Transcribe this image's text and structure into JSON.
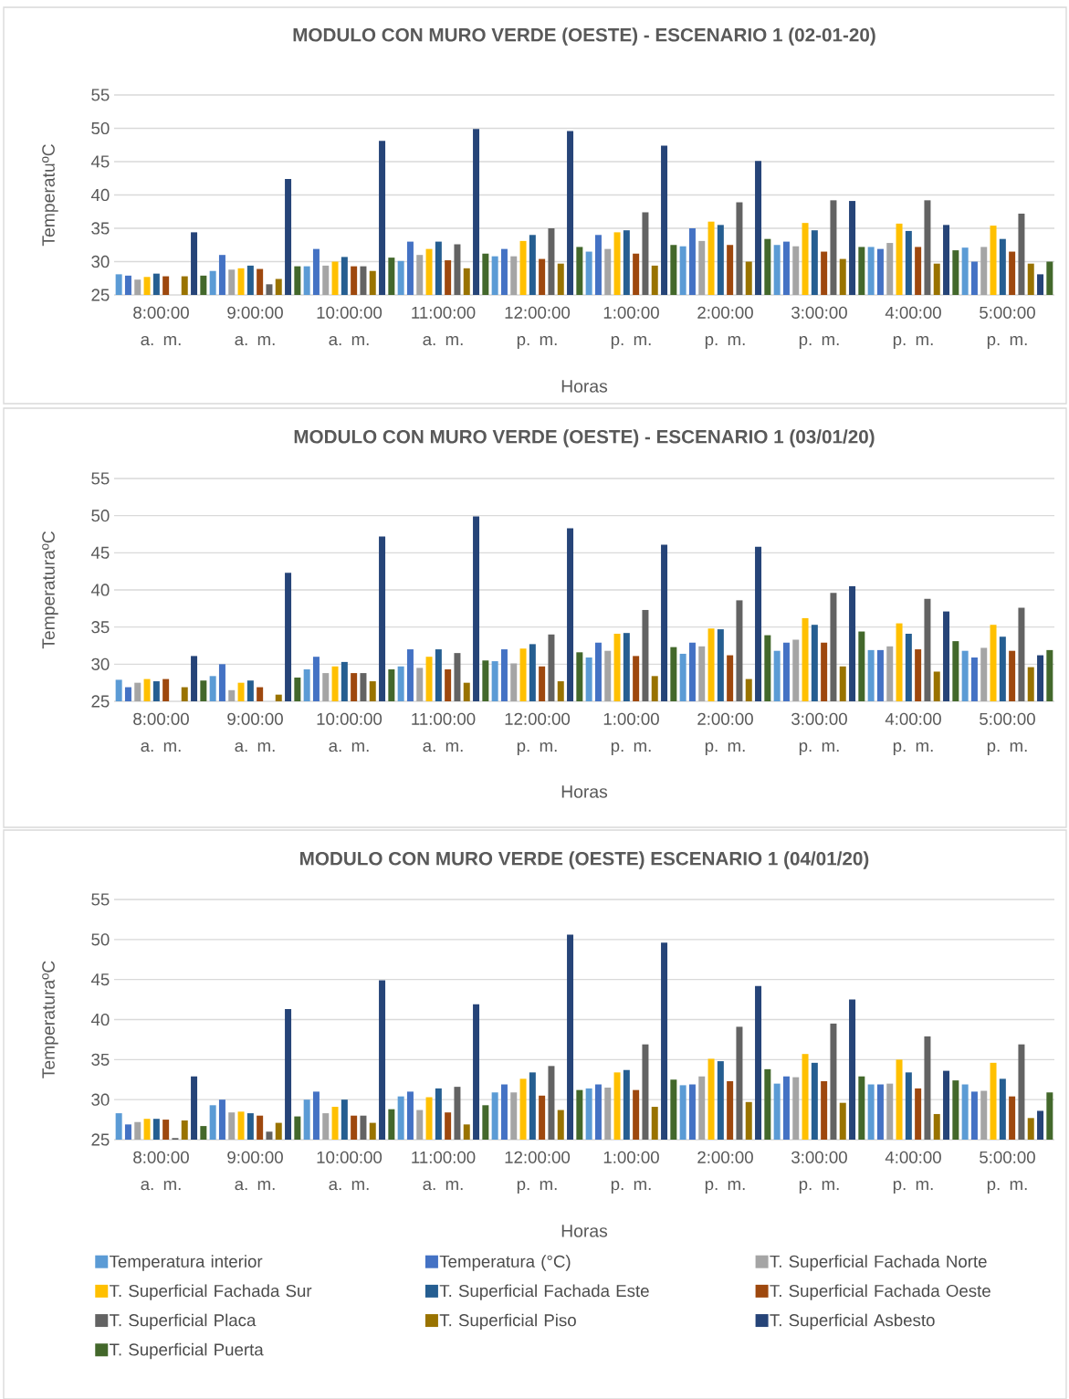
{
  "chart_data": [
    {
      "type": "bar",
      "title": "MODULO CON MURO VERDE (OESTE) - ESCENARIO 1 (02-01-20)",
      "xlabel": "Horas",
      "ylabel": "TemperatuºC",
      "categories": [
        "8:00:00 a. m.",
        "9:00:00 a. m.",
        "10:00:00 a. m.",
        "11:00:00 a. m.",
        "12:00:00 p. m.",
        "1:00:00 p. m.",
        "2:00:00 p. m.",
        "3:00:00 p. m.",
        "4:00:00 p. m.",
        "5:00:00 p. m."
      ],
      "ylim": [
        25,
        55
      ],
      "yticks": [
        25,
        30,
        35,
        40,
        45,
        50,
        55
      ],
      "grid": "y",
      "series": [
        {
          "color": "#5b9bd5",
          "values": [
            28.1,
            28.6,
            29.3,
            30.1,
            30.8,
            31.5,
            32.3,
            32.5,
            32.2,
            32.1
          ]
        },
        {
          "color": "#4472c4",
          "values": [
            27.9,
            31.0,
            31.9,
            33.0,
            31.9,
            34.0,
            35.0,
            33.0,
            31.9,
            30.0
          ]
        },
        {
          "color": "#a5a5a5",
          "values": [
            27.3,
            28.8,
            29.4,
            31.0,
            30.8,
            31.9,
            33.1,
            32.3,
            32.8,
            32.2
          ]
        },
        {
          "color": "#ffc000",
          "values": [
            27.7,
            29.0,
            30.0,
            31.9,
            33.1,
            34.4,
            36.0,
            35.8,
            35.7,
            35.4
          ]
        },
        {
          "color": "#255e91",
          "values": [
            28.2,
            29.4,
            30.7,
            33.0,
            34.0,
            34.7,
            35.5,
            34.7,
            34.6,
            33.4
          ]
        },
        {
          "color": "#9e480e",
          "values": [
            27.8,
            28.9,
            29.3,
            30.2,
            30.4,
            31.2,
            32.5,
            31.5,
            32.2,
            31.5
          ]
        },
        {
          "color": "#636363",
          "values": [
            null,
            26.6,
            29.3,
            32.6,
            35.0,
            37.4,
            38.9,
            39.2,
            39.2,
            37.2
          ]
        },
        {
          "color": "#997300",
          "values": [
            27.8,
            27.4,
            28.6,
            29.0,
            29.7,
            29.4,
            30.0,
            30.4,
            29.7,
            29.7
          ]
        },
        {
          "color": "#264478",
          "values": [
            34.4,
            42.4,
            48.1,
            49.9,
            49.6,
            47.4,
            45.1,
            39.1,
            35.5,
            28.1
          ]
        },
        {
          "color": "#43682b",
          "values": [
            27.9,
            29.3,
            30.6,
            31.2,
            32.2,
            32.5,
            33.4,
            32.2,
            31.7,
            30.0
          ]
        }
      ]
    },
    {
      "type": "bar",
      "title": "MODULO CON MURO VERDE (OESTE) - ESCENARIO 1 (03/01/20)",
      "xlabel": "Horas",
      "ylabel": "TemperaturaºC",
      "categories": [
        "8:00:00 a. m.",
        "9:00:00 a. m.",
        "10:00:00 a. m.",
        "11:00:00 a. m.",
        "12:00:00 p. m.",
        "1:00:00 p. m.",
        "2:00:00 p. m.",
        "3:00:00 p. m.",
        "4:00:00 p. m.",
        "5:00:00 p. m."
      ],
      "ylim": [
        25,
        55
      ],
      "yticks": [
        25,
        30,
        35,
        40,
        45,
        50,
        55
      ],
      "grid": "y",
      "series": [
        {
          "color": "#5b9bd5",
          "values": [
            27.9,
            28.4,
            29.3,
            29.7,
            30.4,
            30.9,
            31.4,
            31.8,
            31.9,
            31.8
          ]
        },
        {
          "color": "#4472c4",
          "values": [
            26.9,
            30.0,
            31.0,
            32.0,
            32.0,
            32.9,
            32.9,
            32.9,
            31.9,
            30.9
          ]
        },
        {
          "color": "#a5a5a5",
          "values": [
            27.5,
            26.5,
            28.8,
            29.5,
            30.1,
            31.8,
            32.4,
            33.3,
            32.4,
            32.2
          ]
        },
        {
          "color": "#ffc000",
          "values": [
            28.0,
            27.5,
            29.7,
            31.0,
            32.1,
            34.1,
            34.8,
            36.2,
            35.5,
            35.3
          ]
        },
        {
          "color": "#255e91",
          "values": [
            27.7,
            27.8,
            30.3,
            32.0,
            32.7,
            34.2,
            34.7,
            35.3,
            34.1,
            33.7
          ]
        },
        {
          "color": "#9e480e",
          "values": [
            28.0,
            26.9,
            28.8,
            29.3,
            29.7,
            31.1,
            31.2,
            32.9,
            32.0,
            31.8
          ]
        },
        {
          "color": "#636363",
          "values": [
            null,
            null,
            28.8,
            31.5,
            34.0,
            37.3,
            38.6,
            39.6,
            38.8,
            37.6
          ]
        },
        {
          "color": "#997300",
          "values": [
            26.9,
            25.9,
            27.7,
            27.5,
            27.7,
            28.4,
            28.0,
            29.7,
            29.0,
            29.6
          ]
        },
        {
          "color": "#264478",
          "values": [
            31.1,
            42.3,
            47.2,
            49.9,
            48.3,
            46.1,
            45.8,
            40.5,
            37.1,
            31.2
          ]
        },
        {
          "color": "#43682b",
          "values": [
            27.8,
            28.2,
            29.3,
            30.5,
            31.6,
            32.3,
            33.9,
            34.4,
            33.1,
            31.9
          ]
        }
      ]
    },
    {
      "type": "bar",
      "title": "MODULO CON MURO VERDE (OESTE) ESCENARIO 1 (04/01/20)",
      "xlabel": "Horas",
      "ylabel": "TemperaturaºC",
      "categories": [
        "8:00:00 a. m.",
        "9:00:00 a. m.",
        "10:00:00 a. m.",
        "11:00:00 a. m.",
        "12:00:00 p. m.",
        "1:00:00 p. m.",
        "2:00:00 p. m.",
        "3:00:00 p. m.",
        "4:00:00 p. m.",
        "5:00:00 p. m."
      ],
      "ylim": [
        25,
        55
      ],
      "yticks": [
        25,
        30,
        35,
        40,
        45,
        50,
        55
      ],
      "grid": "y",
      "legend": "bottom",
      "series": [
        {
          "name": "Temperatura interior",
          "color": "#5b9bd5",
          "values": [
            28.3,
            29.3,
            30.0,
            30.4,
            30.9,
            31.4,
            31.8,
            32.0,
            31.9,
            31.9
          ]
        },
        {
          "name": "Temperatura (°C)",
          "color": "#4472c4",
          "values": [
            26.9,
            30.0,
            31.0,
            31.0,
            31.9,
            31.9,
            31.9,
            32.9,
            31.9,
            31.0
          ]
        },
        {
          "name": "T. Superficial Fachada Norte",
          "color": "#a5a5a5",
          "values": [
            27.2,
            28.4,
            28.3,
            28.7,
            30.9,
            31.5,
            32.9,
            32.8,
            32.0,
            31.1
          ]
        },
        {
          "name": "T. Superficial Fachada Sur",
          "color": "#ffc000",
          "values": [
            27.6,
            28.5,
            29.1,
            30.3,
            32.6,
            33.4,
            35.1,
            35.7,
            35.0,
            34.6
          ]
        },
        {
          "name": "T. Superficial Fachada Este",
          "color": "#255e91",
          "values": [
            27.6,
            28.3,
            30.0,
            31.4,
            33.4,
            33.7,
            34.8,
            34.6,
            33.4,
            32.6
          ]
        },
        {
          "name": "T. Superficial Fachada Oeste",
          "color": "#9e480e",
          "values": [
            27.5,
            28.0,
            28.0,
            28.4,
            30.5,
            31.2,
            32.3,
            32.3,
            31.4,
            30.4
          ]
        },
        {
          "name": "T. Superficial Placa",
          "color": "#636363",
          "values": [
            25.2,
            26.0,
            28.0,
            31.6,
            34.2,
            36.9,
            39.1,
            39.5,
            37.9,
            36.9
          ]
        },
        {
          "name": "T. Superficial Piso",
          "color": "#997300",
          "values": [
            27.4,
            27.1,
            27.1,
            26.9,
            28.7,
            29.1,
            29.7,
            29.6,
            28.2,
            27.7
          ]
        },
        {
          "name": "T. Superficial Asbesto",
          "color": "#264478",
          "values": [
            32.9,
            41.3,
            44.9,
            41.9,
            50.6,
            49.6,
            44.2,
            42.5,
            33.6,
            28.6
          ]
        },
        {
          "name": "T. Superficial Puerta",
          "color": "#43682b",
          "values": [
            26.7,
            27.9,
            28.8,
            29.3,
            31.2,
            32.5,
            33.8,
            32.9,
            32.4,
            30.9
          ]
        }
      ]
    }
  ]
}
